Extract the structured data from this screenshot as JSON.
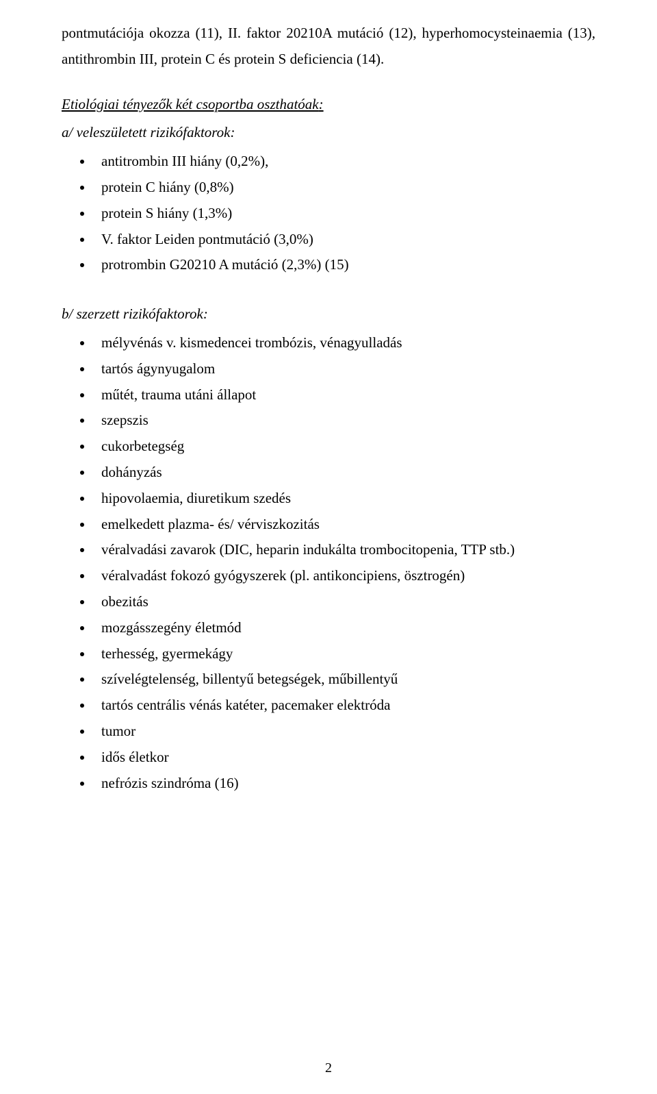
{
  "intro": "pontmutációja okozza (11), II. faktor 20210A mutáció (12), hyperhomocysteinaemia (13), antithrombin III, protein C és protein S deficiencia (14).",
  "sectionA": {
    "title_underline": "Etiológiai tényezők két csoportba oszthatóak",
    "title_suffix": ":",
    "subtitle": "a/ veleszületett rizikófaktorok:",
    "items": [
      "antitrombin III hiány (0,2%),",
      "protein C hiány (0,8%)",
      "protein S hiány (1,3%)",
      "V. faktor Leiden pontmutáció (3,0%)",
      "protrombin G20210 A mutáció  (2,3%) (15)"
    ]
  },
  "sectionB": {
    "subtitle": "b/ szerzett rizikófaktorok:",
    "items": [
      "mélyvénás v. kismedencei trombózis, vénagyulladás",
      "tartós ágynyugalom",
      "műtét, trauma utáni állapot",
      "szepszis",
      "cukorbetegség",
      "dohányzás",
      "hipovolaemia, diuretikum szedés",
      "emelkedett plazma- és/ vérviszkozitás",
      "véralvadási zavarok (DIC, heparin indukálta trombocitopenia, TTP stb.)",
      "véralvadást fokozó gyógyszerek (pl. antikoncipiens, ösztrogén)",
      "obezitás",
      "mozgásszegény életmód",
      "terhesség, gyermekágy",
      "szívelégtelenség, billentyű betegségek, műbillentyű",
      "tartós centrális vénás katéter, pacemaker elektróda",
      "tumor",
      "idős életkor",
      "nefrózis szindróma (16)"
    ]
  },
  "pageNumber": "2"
}
